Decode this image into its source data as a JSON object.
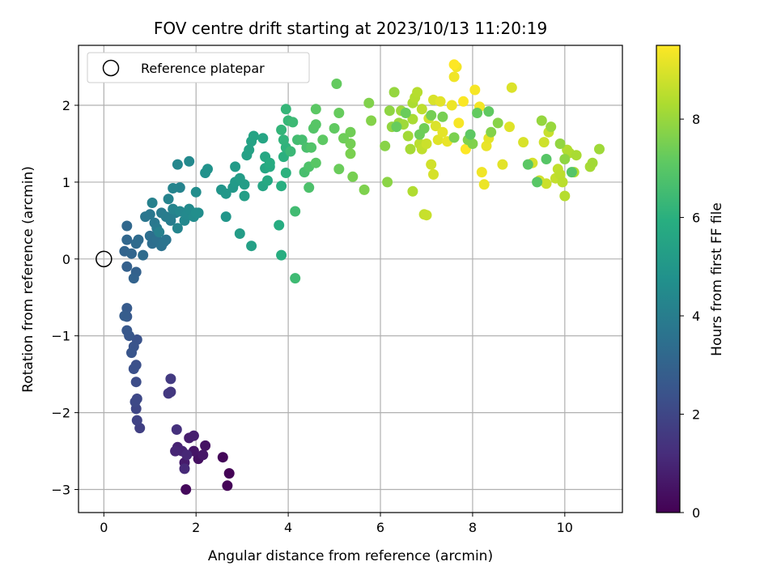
{
  "chart_data": {
    "type": "scatter",
    "title": "FOV centre drift starting at 2023/10/13 11:20:19",
    "xlabel": "Angular distance from reference (arcmin)",
    "ylabel": "Rotation from reference (arcmin)",
    "xlim": [
      -0.55,
      11.25
    ],
    "ylim": [
      -3.3,
      2.78
    ],
    "xticks": [
      0,
      2,
      4,
      6,
      8,
      10
    ],
    "yticks": [
      -3,
      -2,
      -1,
      0,
      1,
      2
    ],
    "grid": true,
    "legend": {
      "placement": "top-left",
      "entries": [
        "Reference platepar"
      ]
    },
    "reference_point": {
      "x": 0,
      "y": 0,
      "label": "Reference platepar"
    },
    "colorbar": {
      "label": "Hours from first FF file",
      "colormap": "viridis",
      "range": [
        0,
        9.5
      ],
      "ticks": [
        0,
        2,
        4,
        6,
        8
      ]
    },
    "points": [
      [
        2.72,
        -2.79,
        0.05
      ],
      [
        2.68,
        -2.95,
        0.08
      ],
      [
        2.58,
        -2.58,
        0.15
      ],
      [
        1.78,
        -3.0,
        0.25
      ],
      [
        2.05,
        -2.6,
        0.4
      ],
      [
        2.2,
        -2.43,
        0.45
      ],
      [
        1.95,
        -2.5,
        0.55
      ],
      [
        2.15,
        -2.55,
        0.6
      ],
      [
        1.75,
        -2.65,
        0.7
      ],
      [
        1.85,
        -2.33,
        0.75
      ],
      [
        1.95,
        -2.3,
        0.8
      ],
      [
        1.6,
        -2.45,
        0.9
      ],
      [
        1.7,
        -2.5,
        0.95
      ],
      [
        1.55,
        -2.5,
        1.0
      ],
      [
        1.8,
        -2.55,
        1.05
      ],
      [
        1.75,
        -2.73,
        1.1
      ],
      [
        1.58,
        -2.22,
        1.3
      ],
      [
        1.45,
        -1.73,
        1.5
      ],
      [
        1.4,
        -1.75,
        1.55
      ],
      [
        1.45,
        -1.56,
        1.6
      ],
      [
        0.78,
        -2.2,
        1.8
      ],
      [
        0.72,
        -2.1,
        1.9
      ],
      [
        0.7,
        -1.95,
        2.0
      ],
      [
        0.72,
        -1.82,
        2.05
      ],
      [
        0.68,
        -1.86,
        2.1
      ],
      [
        0.7,
        -1.6,
        2.2
      ],
      [
        0.7,
        -1.38,
        2.3
      ],
      [
        0.65,
        -1.43,
        2.35
      ],
      [
        0.72,
        -1.05,
        2.4
      ],
      [
        0.65,
        -1.14,
        2.45
      ],
      [
        0.6,
        -1.22,
        2.5
      ],
      [
        0.55,
        -1.0,
        2.55
      ],
      [
        0.5,
        -0.93,
        2.6
      ],
      [
        0.5,
        -0.75,
        2.65
      ],
      [
        0.5,
        -0.64,
        2.7
      ],
      [
        0.45,
        -0.74,
        2.8
      ],
      [
        0.5,
        -0.1,
        2.9
      ],
      [
        0.7,
        -0.17,
        2.95
      ],
      [
        0.65,
        -0.25,
        3.0
      ],
      [
        0.45,
        0.1,
        3.05
      ],
      [
        0.6,
        0.07,
        3.1
      ],
      [
        0.5,
        0.25,
        3.15
      ],
      [
        0.5,
        0.43,
        3.2
      ],
      [
        0.7,
        0.2,
        3.25
      ],
      [
        0.75,
        0.25,
        3.3
      ],
      [
        0.85,
        0.05,
        3.35
      ],
      [
        1.05,
        0.2,
        3.4
      ],
      [
        1.0,
        0.3,
        3.45
      ],
      [
        1.15,
        0.25,
        3.5
      ],
      [
        1.25,
        0.17,
        3.55
      ],
      [
        1.3,
        0.22,
        3.6
      ],
      [
        1.35,
        0.25,
        3.65
      ],
      [
        0.9,
        0.55,
        3.7
      ],
      [
        1.0,
        0.58,
        3.75
      ],
      [
        1.1,
        0.47,
        3.8
      ],
      [
        1.15,
        0.4,
        3.85
      ],
      [
        1.25,
        0.6,
        3.9
      ],
      [
        1.35,
        0.55,
        3.95
      ],
      [
        1.45,
        0.5,
        4.0
      ],
      [
        1.55,
        0.6,
        4.05
      ],
      [
        1.2,
        0.35,
        4.1
      ],
      [
        1.05,
        0.73,
        4.15
      ],
      [
        1.4,
        0.78,
        4.2
      ],
      [
        1.5,
        0.65,
        4.25
      ],
      [
        1.6,
        0.4,
        4.3
      ],
      [
        1.65,
        0.62,
        4.35
      ],
      [
        1.75,
        0.5,
        4.4
      ],
      [
        1.8,
        0.58,
        4.45
      ],
      [
        1.85,
        0.65,
        4.5
      ],
      [
        1.95,
        0.55,
        4.55
      ],
      [
        2.05,
        0.6,
        4.6
      ],
      [
        1.65,
        0.93,
        4.2
      ],
      [
        1.5,
        0.92,
        4.25
      ],
      [
        1.6,
        1.23,
        4.35
      ],
      [
        1.85,
        1.27,
        4.45
      ],
      [
        2.0,
        0.87,
        4.6
      ],
      [
        2.0,
        0.6,
        4.65
      ],
      [
        2.2,
        1.12,
        4.75
      ],
      [
        2.25,
        1.17,
        4.8
      ],
      [
        2.55,
        0.9,
        4.9
      ],
      [
        2.65,
        0.55,
        4.95
      ],
      [
        2.65,
        0.85,
        5.0
      ],
      [
        2.8,
        0.93,
        5.05
      ],
      [
        2.85,
        1.0,
        5.1
      ],
      [
        2.85,
        1.2,
        5.15
      ],
      [
        2.95,
        1.05,
        5.2
      ],
      [
        3.05,
        0.97,
        5.25
      ],
      [
        3.05,
        0.82,
        5.3
      ],
      [
        3.1,
        1.35,
        5.35
      ],
      [
        3.15,
        1.42,
        5.4
      ],
      [
        3.2,
        1.53,
        5.45
      ],
      [
        3.25,
        1.6,
        5.5
      ],
      [
        3.45,
        1.57,
        5.55
      ],
      [
        2.95,
        0.33,
        5.2
      ],
      [
        3.2,
        0.17,
        5.35
      ],
      [
        3.45,
        0.95,
        5.55
      ],
      [
        3.5,
        1.18,
        5.6
      ],
      [
        3.5,
        1.33,
        5.65
      ],
      [
        3.55,
        1.02,
        5.7
      ],
      [
        3.6,
        1.2,
        5.75
      ],
      [
        3.6,
        1.25,
        5.8
      ],
      [
        3.8,
        0.44,
        5.85
      ],
      [
        3.85,
        0.05,
        5.9
      ],
      [
        3.85,
        0.95,
        5.95
      ],
      [
        3.9,
        1.33,
        6.0
      ],
      [
        3.95,
        1.12,
        6.05
      ],
      [
        3.95,
        1.45,
        6.1
      ],
      [
        3.9,
        1.55,
        6.15
      ],
      [
        3.85,
        1.68,
        6.2
      ],
      [
        3.95,
        1.95,
        6.25
      ],
      [
        4.0,
        1.8,
        6.3
      ],
      [
        4.05,
        1.4,
        6.35
      ],
      [
        4.1,
        1.78,
        6.4
      ],
      [
        4.15,
        -0.25,
        6.45
      ],
      [
        4.15,
        0.62,
        6.5
      ],
      [
        4.2,
        1.55,
        6.55
      ],
      [
        4.3,
        1.55,
        6.6
      ],
      [
        4.35,
        1.13,
        6.65
      ],
      [
        4.4,
        1.45,
        6.7
      ],
      [
        4.45,
        0.93,
        6.75
      ],
      [
        4.45,
        1.2,
        6.8
      ],
      [
        4.5,
        1.45,
        6.85
      ],
      [
        4.55,
        1.7,
        6.9
      ],
      [
        4.6,
        1.75,
        6.95
      ],
      [
        4.6,
        1.25,
        7.0
      ],
      [
        4.6,
        1.95,
        7.05
      ],
      [
        4.75,
        1.55,
        7.1
      ],
      [
        5.0,
        1.7,
        7.15
      ],
      [
        5.05,
        2.28,
        7.2
      ],
      [
        5.1,
        1.9,
        7.25
      ],
      [
        5.1,
        1.17,
        7.3
      ],
      [
        5.2,
        1.57,
        7.35
      ],
      [
        5.35,
        1.65,
        7.4
      ],
      [
        5.35,
        1.5,
        7.45
      ],
      [
        5.4,
        1.07,
        7.5
      ],
      [
        5.35,
        1.37,
        7.55
      ],
      [
        5.65,
        0.9,
        7.6
      ],
      [
        5.75,
        2.03,
        7.65
      ],
      [
        5.8,
        1.8,
        7.7
      ],
      [
        6.1,
        1.47,
        7.75
      ],
      [
        6.15,
        1.0,
        7.8
      ],
      [
        6.2,
        1.93,
        7.85
      ],
      [
        6.25,
        1.72,
        7.9
      ],
      [
        6.3,
        2.17,
        7.95
      ],
      [
        6.4,
        1.77,
        8.0
      ],
      [
        6.45,
        1.93,
        8.05
      ],
      [
        6.5,
        1.75,
        8.1
      ],
      [
        6.6,
        1.6,
        8.15
      ],
      [
        6.65,
        1.43,
        8.2
      ],
      [
        6.7,
        1.82,
        8.25
      ],
      [
        6.7,
        2.03,
        8.3
      ],
      [
        6.7,
        0.88,
        8.35
      ],
      [
        6.75,
        2.1,
        8.4
      ],
      [
        6.8,
        2.17,
        8.45
      ],
      [
        6.85,
        1.5,
        8.5
      ],
      [
        6.9,
        1.95,
        8.55
      ],
      [
        6.9,
        1.43,
        8.6
      ],
      [
        6.95,
        0.58,
        8.65
      ],
      [
        7.0,
        0.57,
        8.7
      ],
      [
        7.0,
        1.5,
        8.75
      ],
      [
        7.05,
        1.83,
        8.8
      ],
      [
        7.1,
        1.23,
        8.85
      ],
      [
        7.15,
        1.1,
        8.9
      ],
      [
        7.15,
        2.07,
        8.95
      ],
      [
        7.2,
        1.73,
        9.0
      ],
      [
        7.25,
        1.55,
        9.05
      ],
      [
        7.3,
        2.05,
        9.1
      ],
      [
        7.35,
        1.65,
        9.15
      ],
      [
        7.45,
        1.53,
        9.2
      ],
      [
        7.55,
        2.0,
        9.25
      ],
      [
        7.6,
        2.37,
        9.3
      ],
      [
        7.65,
        2.5,
        9.35
      ],
      [
        7.7,
        1.77,
        9.4
      ],
      [
        7.8,
        2.05,
        9.45
      ],
      [
        7.85,
        1.43,
        9.5
      ],
      [
        7.6,
        2.53,
        9.5
      ],
      [
        8.05,
        2.2,
        9.4
      ],
      [
        8.15,
        1.98,
        9.35
      ],
      [
        8.2,
        1.13,
        9.3
      ],
      [
        8.25,
        0.97,
        9.25
      ],
      [
        8.3,
        1.47,
        9.2
      ],
      [
        8.35,
        1.57,
        9.15
      ],
      [
        8.65,
        1.23,
        9.1
      ],
      [
        8.8,
        1.72,
        9.05
      ],
      [
        8.85,
        2.23,
        9.0
      ],
      [
        9.1,
        1.52,
        8.95
      ],
      [
        9.3,
        1.25,
        8.9
      ],
      [
        9.45,
        1.02,
        8.85
      ],
      [
        9.55,
        1.52,
        8.8
      ],
      [
        9.6,
        0.98,
        8.75
      ],
      [
        9.65,
        1.65,
        8.7
      ],
      [
        9.8,
        1.05,
        8.65
      ],
      [
        9.85,
        1.17,
        8.6
      ],
      [
        9.9,
        1.1,
        8.55
      ],
      [
        9.95,
        1.0,
        8.5
      ],
      [
        10.0,
        0.82,
        8.45
      ],
      [
        10.05,
        1.42,
        8.4
      ],
      [
        10.1,
        1.38,
        8.35
      ],
      [
        10.2,
        1.13,
        8.3
      ],
      [
        10.25,
        1.35,
        8.25
      ],
      [
        10.55,
        1.2,
        8.2
      ],
      [
        10.6,
        1.25,
        8.15
      ],
      [
        10.75,
        1.43,
        8.1
      ],
      [
        9.7,
        1.72,
        8.0
      ],
      [
        9.5,
        1.8,
        7.95
      ],
      [
        9.9,
        1.5,
        7.9
      ],
      [
        10.0,
        1.3,
        7.85
      ],
      [
        8.55,
        1.77,
        7.75
      ],
      [
        8.4,
        1.65,
        7.7
      ],
      [
        8.0,
        1.5,
        7.65
      ],
      [
        7.9,
        1.55,
        7.6
      ],
      [
        7.6,
        1.58,
        7.55
      ],
      [
        7.35,
        1.85,
        7.5
      ],
      [
        7.1,
        1.87,
        7.45
      ],
      [
        6.95,
        1.7,
        7.4
      ],
      [
        6.85,
        1.62,
        7.35
      ],
      [
        6.55,
        1.9,
        7.3
      ],
      [
        6.35,
        1.72,
        7.25
      ],
      [
        8.1,
        1.9,
        7.2
      ],
      [
        8.35,
        1.92,
        7.15
      ],
      [
        7.95,
        1.62,
        7.1
      ],
      [
        9.2,
        1.23,
        7.05
      ],
      [
        9.4,
        1.0,
        7.0
      ],
      [
        9.6,
        1.3,
        6.95
      ],
      [
        10.15,
        1.13,
        6.9
      ]
    ]
  }
}
